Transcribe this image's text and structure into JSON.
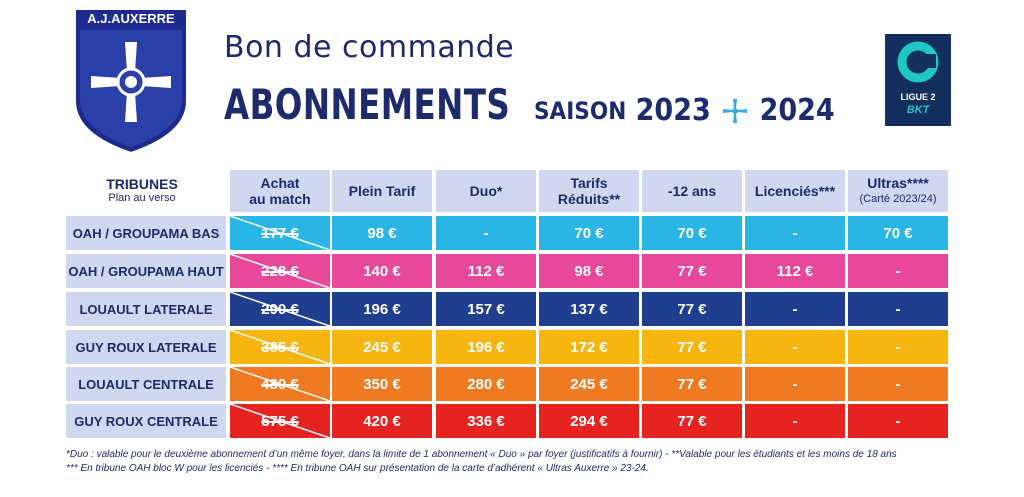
{
  "header": {
    "club_name": "A.J.AUXERRE",
    "title_top": "Bon de commande",
    "title_main": "ABONNEMENTS",
    "season_label": "SAISON",
    "season_start": "2023",
    "season_end": "2024",
    "league_line1": "LIGUE 2",
    "league_line2": "BKT"
  },
  "table": {
    "row_header": {
      "main": "TRIBUNES",
      "sub": "Plan au verso"
    },
    "columns": [
      {
        "label": "Achat\nau match",
        "sub": ""
      },
      {
        "label": "Plein Tarif",
        "sub": ""
      },
      {
        "label": "Duo*",
        "sub": ""
      },
      {
        "label": "Tarifs\nRéduits**",
        "sub": ""
      },
      {
        "label": "-12 ans",
        "sub": ""
      },
      {
        "label": "Licenciés***",
        "sub": ""
      },
      {
        "label": "Ultras****",
        "sub": "(Carté 2023/24)"
      }
    ],
    "rows": [
      {
        "name": "OAH / GROUPAMA BAS",
        "color": "#29b6e6",
        "cells": [
          "177 €",
          "98 €",
          "-",
          "70 €",
          "70 €",
          "-",
          "70 €"
        ]
      },
      {
        "name": "OAH / GROUPAMA HAUT",
        "color": "#e8489a",
        "cells": [
          "228 €",
          "140 €",
          "112 €",
          "98 €",
          "77 €",
          "112 €",
          "-"
        ]
      },
      {
        "name": "LOUAULT LATERALE",
        "color": "#1f3f8e",
        "cells": [
          "290 €",
          "196 €",
          "157 €",
          "137 €",
          "77 €",
          "-",
          "-"
        ]
      },
      {
        "name": "GUY ROUX LATERALE",
        "color": "#f7b50f",
        "cells": [
          "385 €",
          "245 €",
          "196 €",
          "172 €",
          "77 €",
          "-",
          "-"
        ]
      },
      {
        "name": "LOUAULT CENTRALE",
        "color": "#f07a21",
        "cells": [
          "480 €",
          "350 €",
          "280 €",
          "245 €",
          "77 €",
          "-",
          "-"
        ]
      },
      {
        "name": "GUY ROUX CENTRALE",
        "color": "#e52421",
        "cells": [
          "575 €",
          "420 €",
          "336 €",
          "294 €",
          "77 €",
          "-",
          "-"
        ]
      }
    ]
  },
  "footnotes": {
    "line1": "*Duo : valable pour le deuxième abonnement d’un même foyer, dans la limite de 1 abonnement « Duo » par foyer (justificatifs à fournir) - **Valable pour les étudiants et les moins de 18 ans",
    "line2": "*** En tribune OAH bloc W pour les licenciés - **** En tribune OAH sur présentation de la carte d’adhérent « Ultras Auxerre » 23-24."
  }
}
